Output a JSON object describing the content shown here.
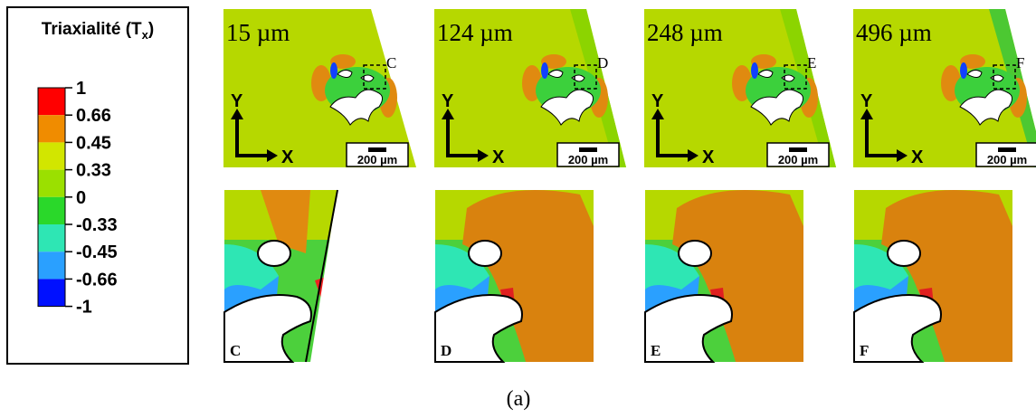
{
  "legend": {
    "title": "Triaxialité (T",
    "title_subscript": "x",
    "title_end": ")",
    "ticks": [
      1,
      0.66,
      0.45,
      0.33,
      0,
      -0.33,
      -0.45,
      -0.66,
      -1
    ],
    "colors": [
      "#ff0000",
      "#f08c00",
      "#d2e600",
      "#9be000",
      "#2ad82a",
      "#2ee6b4",
      "#2aa0ff",
      "#0010ff"
    ]
  },
  "panels": [
    {
      "depth": "15 µm",
      "zoom_label": "C"
    },
    {
      "depth": "124 µm",
      "zoom_label": "D"
    },
    {
      "depth": "248 µm",
      "zoom_label": "E"
    },
    {
      "depth": "496 µm",
      "zoom_label": "F"
    }
  ],
  "axis_labels": {
    "y": "Y",
    "x": "X"
  },
  "scale_bar": "200 µm",
  "caption": "(a)"
}
